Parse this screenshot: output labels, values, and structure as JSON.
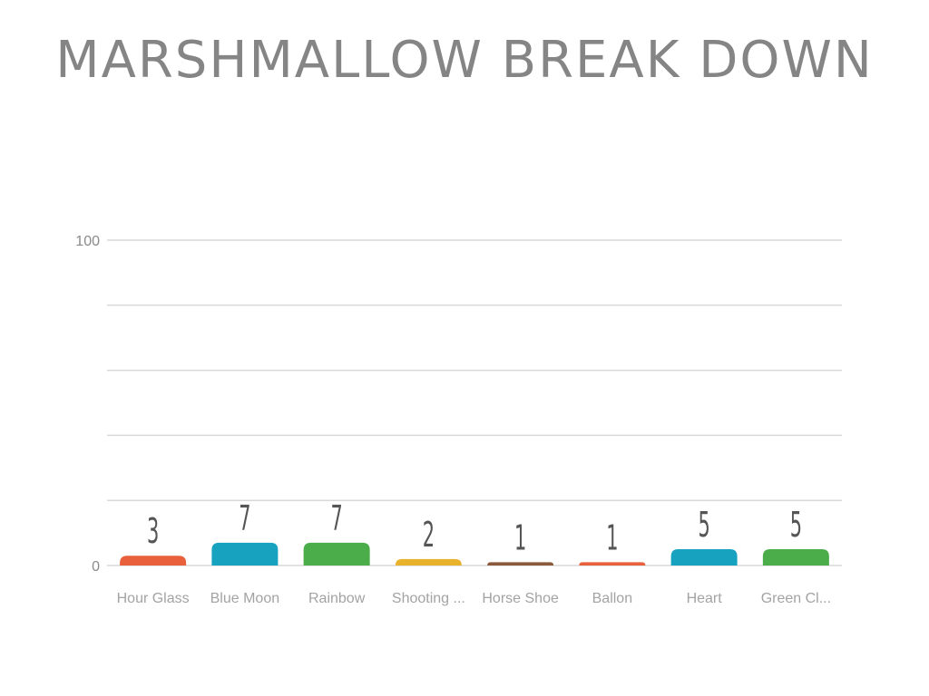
{
  "chart_data": {
    "type": "bar",
    "title": "MARSHMALLOW BREAK DOWN",
    "categories": [
      "Hour Glass",
      "Blue Moon",
      "Rainbow",
      "Shooting ...",
      "Horse Shoe",
      "Ballon",
      "Heart",
      "Green Cl..."
    ],
    "values": [
      3,
      7,
      7,
      2,
      1,
      1,
      5,
      5
    ],
    "colors": [
      "#e8603c",
      "#17a2bf",
      "#4aad4a",
      "#e8b22c",
      "#8b5a3c",
      "#e8603c",
      "#17a2bf",
      "#4aad4a"
    ],
    "ylim": [
      0,
      100
    ],
    "yticks": [
      "0",
      "100"
    ],
    "xlabel": "",
    "ylabel": "",
    "grid": true,
    "legend": "none"
  }
}
